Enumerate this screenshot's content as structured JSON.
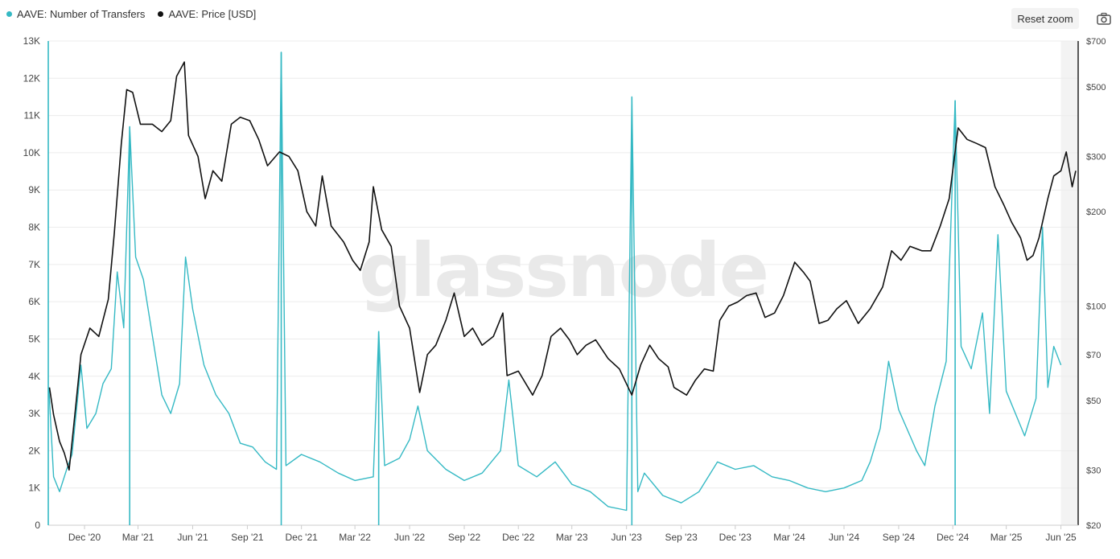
{
  "toolbar": {
    "reset_zoom_label": "Reset zoom",
    "camera_icon": "camera-icon"
  },
  "watermark": "glassnode",
  "colors": {
    "transfers": "#35b9c4",
    "price": "#111111",
    "grid": "#ececec",
    "forecast_band": "#f3f3f3"
  },
  "chart_data": {
    "type": "line",
    "legend_position": "top-left",
    "grid": true,
    "series": [
      {
        "name": "AAVE: Number of Transfers",
        "axis": "left",
        "color": "#35b9c4",
        "points": [
          [
            "2020-10-02",
            3700
          ],
          [
            "2020-10-10",
            1300
          ],
          [
            "2020-10-20",
            900
          ],
          [
            "2020-11-01",
            1500
          ],
          [
            "2020-11-10",
            1900
          ],
          [
            "2020-11-25",
            4300
          ],
          [
            "2020-12-05",
            2600
          ],
          [
            "2020-12-20",
            3000
          ],
          [
            "2021-01-01",
            3800
          ],
          [
            "2021-01-15",
            4200
          ],
          [
            "2021-01-25",
            6800
          ],
          [
            "2021-02-05",
            5300
          ],
          [
            "2021-02-15",
            10700
          ],
          [
            "2021-02-25",
            7200
          ],
          [
            "2021-03-10",
            6600
          ],
          [
            "2021-03-25",
            5100
          ],
          [
            "2021-04-10",
            3500
          ],
          [
            "2021-04-25",
            3000
          ],
          [
            "2021-05-10",
            3800
          ],
          [
            "2021-05-20",
            7200
          ],
          [
            "2021-06-01",
            5800
          ],
          [
            "2021-06-20",
            4300
          ],
          [
            "2021-07-10",
            3500
          ],
          [
            "2021-08-01",
            3000
          ],
          [
            "2021-08-20",
            2200
          ],
          [
            "2021-09-10",
            2100
          ],
          [
            "2021-10-01",
            1700
          ],
          [
            "2021-10-20",
            1500
          ],
          [
            "2021-10-28",
            12700
          ],
          [
            "2021-11-05",
            1600
          ],
          [
            "2021-12-01",
            1900
          ],
          [
            "2022-01-01",
            1700
          ],
          [
            "2022-02-01",
            1400
          ],
          [
            "2022-03-01",
            1200
          ],
          [
            "2022-04-01",
            1300
          ],
          [
            "2022-04-10",
            5200
          ],
          [
            "2022-04-20",
            1600
          ],
          [
            "2022-05-15",
            1800
          ],
          [
            "2022-06-01",
            2300
          ],
          [
            "2022-06-15",
            3200
          ],
          [
            "2022-07-01",
            2000
          ],
          [
            "2022-08-01",
            1500
          ],
          [
            "2022-09-01",
            1200
          ],
          [
            "2022-10-01",
            1400
          ],
          [
            "2022-11-01",
            2000
          ],
          [
            "2022-11-15",
            3900
          ],
          [
            "2022-12-01",
            1600
          ],
          [
            "2023-01-01",
            1300
          ],
          [
            "2023-02-01",
            1700
          ],
          [
            "2023-03-01",
            1100
          ],
          [
            "2023-04-01",
            900
          ],
          [
            "2023-05-01",
            500
          ],
          [
            "2023-06-01",
            400
          ],
          [
            "2023-06-10",
            11500
          ],
          [
            "2023-06-20",
            900
          ],
          [
            "2023-07-01",
            1400
          ],
          [
            "2023-08-01",
            800
          ],
          [
            "2023-09-01",
            600
          ],
          [
            "2023-10-01",
            900
          ],
          [
            "2023-11-01",
            1700
          ],
          [
            "2023-12-01",
            1500
          ],
          [
            "2024-01-01",
            1600
          ],
          [
            "2024-02-01",
            1300
          ],
          [
            "2024-03-01",
            1200
          ],
          [
            "2024-04-01",
            1000
          ],
          [
            "2024-05-01",
            900
          ],
          [
            "2024-06-01",
            1000
          ],
          [
            "2024-07-01",
            1200
          ],
          [
            "2024-07-15",
            1700
          ],
          [
            "2024-08-01",
            2600
          ],
          [
            "2024-08-15",
            4400
          ],
          [
            "2024-09-01",
            3100
          ],
          [
            "2024-10-01",
            2000
          ],
          [
            "2024-10-15",
            1600
          ],
          [
            "2024-11-01",
            3200
          ],
          [
            "2024-11-20",
            4400
          ],
          [
            "2024-12-05",
            11400
          ],
          [
            "2024-12-15",
            4800
          ],
          [
            "2025-01-01",
            4200
          ],
          [
            "2025-01-20",
            5700
          ],
          [
            "2025-02-01",
            3000
          ],
          [
            "2025-02-15",
            7800
          ],
          [
            "2025-03-01",
            3600
          ],
          [
            "2025-04-01",
            2400
          ],
          [
            "2025-04-20",
            3400
          ],
          [
            "2025-05-01",
            8000
          ],
          [
            "2025-05-10",
            3700
          ],
          [
            "2025-05-20",
            4800
          ],
          [
            "2025-06-01",
            4300
          ]
        ],
        "spikes": [
          [
            "2020-10-01",
            13000
          ],
          [
            "2021-02-15",
            10700
          ],
          [
            "2021-10-28",
            12700
          ],
          [
            "2022-04-10",
            5200
          ],
          [
            "2023-06-10",
            11500
          ],
          [
            "2024-12-05",
            11400
          ]
        ]
      },
      {
        "name": "AAVE: Price [USD]",
        "axis": "right",
        "color": "#111111",
        "points": [
          [
            "2020-10-03",
            55
          ],
          [
            "2020-10-10",
            45
          ],
          [
            "2020-10-20",
            37
          ],
          [
            "2020-10-28",
            34
          ],
          [
            "2020-11-05",
            30
          ],
          [
            "2020-11-12",
            40
          ],
          [
            "2020-11-25",
            70
          ],
          [
            "2020-12-10",
            85
          ],
          [
            "2020-12-25",
            80
          ],
          [
            "2021-01-10",
            105
          ],
          [
            "2021-01-20",
            170
          ],
          [
            "2021-02-01",
            330
          ],
          [
            "2021-02-10",
            490
          ],
          [
            "2021-02-20",
            480
          ],
          [
            "2021-03-05",
            380
          ],
          [
            "2021-03-25",
            380
          ],
          [
            "2021-04-10",
            360
          ],
          [
            "2021-04-25",
            390
          ],
          [
            "2021-05-05",
            540
          ],
          [
            "2021-05-18",
            600
          ],
          [
            "2021-05-25",
            350
          ],
          [
            "2021-06-10",
            300
          ],
          [
            "2021-06-22",
            220
          ],
          [
            "2021-07-05",
            270
          ],
          [
            "2021-07-20",
            250
          ],
          [
            "2021-08-05",
            380
          ],
          [
            "2021-08-20",
            400
          ],
          [
            "2021-09-05",
            390
          ],
          [
            "2021-09-20",
            340
          ],
          [
            "2021-10-05",
            280
          ],
          [
            "2021-10-25",
            310
          ],
          [
            "2021-11-10",
            300
          ],
          [
            "2021-11-25",
            270
          ],
          [
            "2021-12-10",
            200
          ],
          [
            "2021-12-25",
            180
          ],
          [
            "2022-01-05",
            260
          ],
          [
            "2022-01-20",
            180
          ],
          [
            "2022-02-10",
            160
          ],
          [
            "2022-02-25",
            140
          ],
          [
            "2022-03-10",
            130
          ],
          [
            "2022-03-25",
            160
          ],
          [
            "2022-04-01",
            240
          ],
          [
            "2022-04-15",
            175
          ],
          [
            "2022-05-01",
            155
          ],
          [
            "2022-05-15",
            100
          ],
          [
            "2022-06-01",
            85
          ],
          [
            "2022-06-18",
            53
          ],
          [
            "2022-07-01",
            70
          ],
          [
            "2022-07-15",
            75
          ],
          [
            "2022-08-01",
            90
          ],
          [
            "2022-08-15",
            110
          ],
          [
            "2022-09-01",
            80
          ],
          [
            "2022-09-15",
            85
          ],
          [
            "2022-10-01",
            75
          ],
          [
            "2022-10-20",
            80
          ],
          [
            "2022-11-05",
            95
          ],
          [
            "2022-11-12",
            60
          ],
          [
            "2022-12-01",
            62
          ],
          [
            "2022-12-25",
            52
          ],
          [
            "2023-01-10",
            60
          ],
          [
            "2023-01-25",
            80
          ],
          [
            "2023-02-10",
            85
          ],
          [
            "2023-02-25",
            78
          ],
          [
            "2023-03-10",
            70
          ],
          [
            "2023-03-25",
            75
          ],
          [
            "2023-04-10",
            78
          ],
          [
            "2023-05-01",
            68
          ],
          [
            "2023-05-20",
            63
          ],
          [
            "2023-06-10",
            52
          ],
          [
            "2023-06-25",
            65
          ],
          [
            "2023-07-10",
            75
          ],
          [
            "2023-07-25",
            68
          ],
          [
            "2023-08-10",
            64
          ],
          [
            "2023-08-20",
            55
          ],
          [
            "2023-09-10",
            52
          ],
          [
            "2023-09-25",
            58
          ],
          [
            "2023-10-10",
            63
          ],
          [
            "2023-10-25",
            62
          ],
          [
            "2023-11-05",
            90
          ],
          [
            "2023-11-20",
            100
          ],
          [
            "2023-12-05",
            103
          ],
          [
            "2023-12-20",
            108
          ],
          [
            "2024-01-05",
            110
          ],
          [
            "2024-01-20",
            92
          ],
          [
            "2024-02-05",
            95
          ],
          [
            "2024-02-20",
            108
          ],
          [
            "2024-03-10",
            138
          ],
          [
            "2024-03-25",
            128
          ],
          [
            "2024-04-05",
            120
          ],
          [
            "2024-04-20",
            88
          ],
          [
            "2024-05-05",
            90
          ],
          [
            "2024-05-20",
            98
          ],
          [
            "2024-06-05",
            104
          ],
          [
            "2024-06-25",
            88
          ],
          [
            "2024-07-15",
            98
          ],
          [
            "2024-08-05",
            115
          ],
          [
            "2024-08-20",
            150
          ],
          [
            "2024-09-05",
            140
          ],
          [
            "2024-09-20",
            155
          ],
          [
            "2024-10-10",
            150
          ],
          [
            "2024-10-25",
            150
          ],
          [
            "2024-11-10",
            180
          ],
          [
            "2024-11-25",
            220
          ],
          [
            "2024-12-10",
            370
          ],
          [
            "2024-12-25",
            340
          ],
          [
            "2025-01-10",
            330
          ],
          [
            "2025-01-25",
            320
          ],
          [
            "2025-02-10",
            240
          ],
          [
            "2025-02-25",
            210
          ],
          [
            "2025-03-10",
            185
          ],
          [
            "2025-03-25",
            165
          ],
          [
            "2025-04-05",
            140
          ],
          [
            "2025-04-15",
            145
          ],
          [
            "2025-04-25",
            165
          ],
          [
            "2025-05-10",
            220
          ],
          [
            "2025-05-20",
            260
          ],
          [
            "2025-06-01",
            270
          ],
          [
            "2025-06-10",
            310
          ],
          [
            "2025-06-20",
            240
          ],
          [
            "2025-06-26",
            270
          ]
        ]
      }
    ],
    "x_axis": {
      "ticks": [
        "Dec '20",
        "Mar '21",
        "Jun '21",
        "Sep '21",
        "Dec '21",
        "Mar '22",
        "Jun '22",
        "Sep '22",
        "Dec '22",
        "Mar '23",
        "Jun '23",
        "Sep '23",
        "Dec '23",
        "Mar '24",
        "Jun '24",
        "Sep '24",
        "Dec '24",
        "Mar '25",
        "Jun '25"
      ],
      "tick_dates": [
        "2020-12-01",
        "2021-03-01",
        "2021-06-01",
        "2021-09-01",
        "2021-12-01",
        "2022-03-01",
        "2022-06-01",
        "2022-09-01",
        "2022-12-01",
        "2023-03-01",
        "2023-06-01",
        "2023-09-01",
        "2023-12-01",
        "2024-03-01",
        "2024-06-01",
        "2024-09-01",
        "2024-12-01",
        "2025-03-01",
        "2025-06-01"
      ],
      "range": [
        "2020-10-01",
        "2025-06-30"
      ]
    },
    "y_left": {
      "range": [
        0,
        13000
      ],
      "tick_values": [
        0,
        1000,
        2000,
        3000,
        4000,
        5000,
        6000,
        7000,
        8000,
        9000,
        10000,
        11000,
        12000,
        13000
      ],
      "tick_labels": [
        "0",
        "1K",
        "2K",
        "3K",
        "4K",
        "5K",
        "6K",
        "7K",
        "8K",
        "9K",
        "10K",
        "11K",
        "12K",
        "13K"
      ]
    },
    "y_right": {
      "scale": "log",
      "range": [
        20,
        700
      ],
      "tick_values": [
        20,
        30,
        50,
        70,
        100,
        200,
        300,
        500,
        700
      ],
      "tick_labels": [
        "$20",
        "$30",
        "$50",
        "$70",
        "$100",
        "$200",
        "$300",
        "$500",
        "$700"
      ]
    },
    "forecast_band": [
      "2025-06-01",
      "2025-06-30"
    ]
  }
}
